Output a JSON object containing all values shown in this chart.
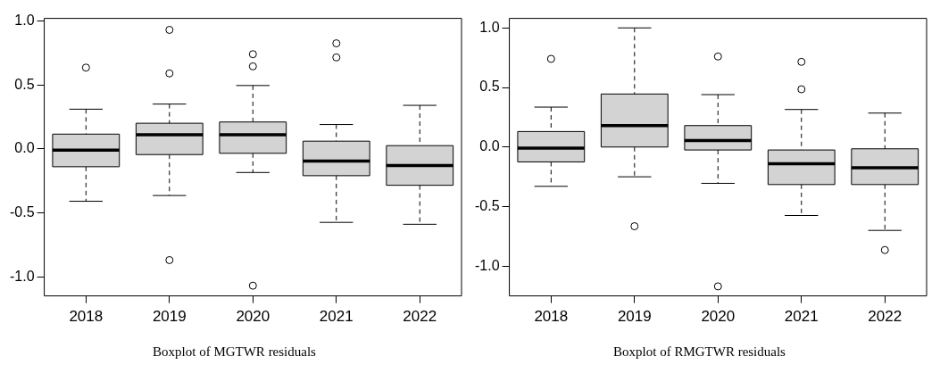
{
  "chart_data": [
    {
      "type": "box",
      "title": "Boxplot of MGTWR residuals",
      "categories": [
        "2018",
        "2019",
        "2020",
        "2021",
        "2022"
      ],
      "color": "#d3d3d3",
      "ylim": [
        -1.15,
        1.02
      ],
      "yticks": [
        {
          "value": -1,
          "label": "-1.0"
        },
        {
          "value": -0.5,
          "label": "-0.5"
        },
        {
          "value": 0,
          "label": "0.0"
        },
        {
          "value": 0.5,
          "label": "0.5"
        },
        {
          "value": 1,
          "label": "1.0"
        }
      ],
      "grid": false,
      "legend": false,
      "boxes": [
        {
          "low": -0.41,
          "q1": -0.14,
          "median": -0.01,
          "q3": 0.115,
          "high": 0.31,
          "outliers": [
            0.635
          ]
        },
        {
          "low": -0.365,
          "q1": -0.045,
          "median": 0.11,
          "q3": 0.2,
          "high": 0.35,
          "outliers": [
            0.93,
            0.59,
            -0.87
          ]
        },
        {
          "low": -0.185,
          "q1": -0.035,
          "median": 0.11,
          "q3": 0.21,
          "high": 0.495,
          "outliers": [
            0.74,
            0.645,
            -1.07
          ]
        },
        {
          "low": -0.575,
          "q1": -0.21,
          "median": -0.095,
          "q3": 0.06,
          "high": 0.19,
          "outliers": [
            0.825,
            0.715
          ]
        },
        {
          "low": -0.59,
          "q1": -0.285,
          "median": -0.13,
          "q3": 0.025,
          "high": 0.34
        }
      ]
    },
    {
      "type": "box",
      "title": "Boxplot of RMGTWR residuals",
      "categories": [
        "2018",
        "2019",
        "2020",
        "2021",
        "2022"
      ],
      "color": "#d3d3d3",
      "ylim": [
        -1.25,
        1.08
      ],
      "yticks": [
        {
          "value": -1,
          "label": "-1.0"
        },
        {
          "value": -0.5,
          "label": "-0.5"
        },
        {
          "value": 0,
          "label": "0.0"
        },
        {
          "value": 0.5,
          "label": "0.5"
        },
        {
          "value": 1,
          "label": "1.0"
        }
      ],
      "grid": false,
      "legend": false,
      "boxes": [
        {
          "low": -0.33,
          "q1": -0.125,
          "median": -0.01,
          "q3": 0.13,
          "high": 0.335,
          "outliers": [
            0.74
          ]
        },
        {
          "low": -0.25,
          "q1": 0.0,
          "median": 0.18,
          "q3": 0.445,
          "high": 1.0,
          "outliers": [
            -0.665
          ]
        },
        {
          "low": -0.305,
          "q1": -0.025,
          "median": 0.055,
          "q3": 0.18,
          "high": 0.44,
          "outliers": [
            0.76,
            -1.17
          ]
        },
        {
          "low": -0.575,
          "q1": -0.315,
          "median": -0.14,
          "q3": -0.025,
          "high": 0.315,
          "outliers": [
            0.715,
            0.485
          ]
        },
        {
          "low": -0.7,
          "q1": -0.315,
          "median": -0.175,
          "q3": -0.015,
          "high": 0.285,
          "outliers": [
            -0.865
          ]
        }
      ]
    }
  ]
}
